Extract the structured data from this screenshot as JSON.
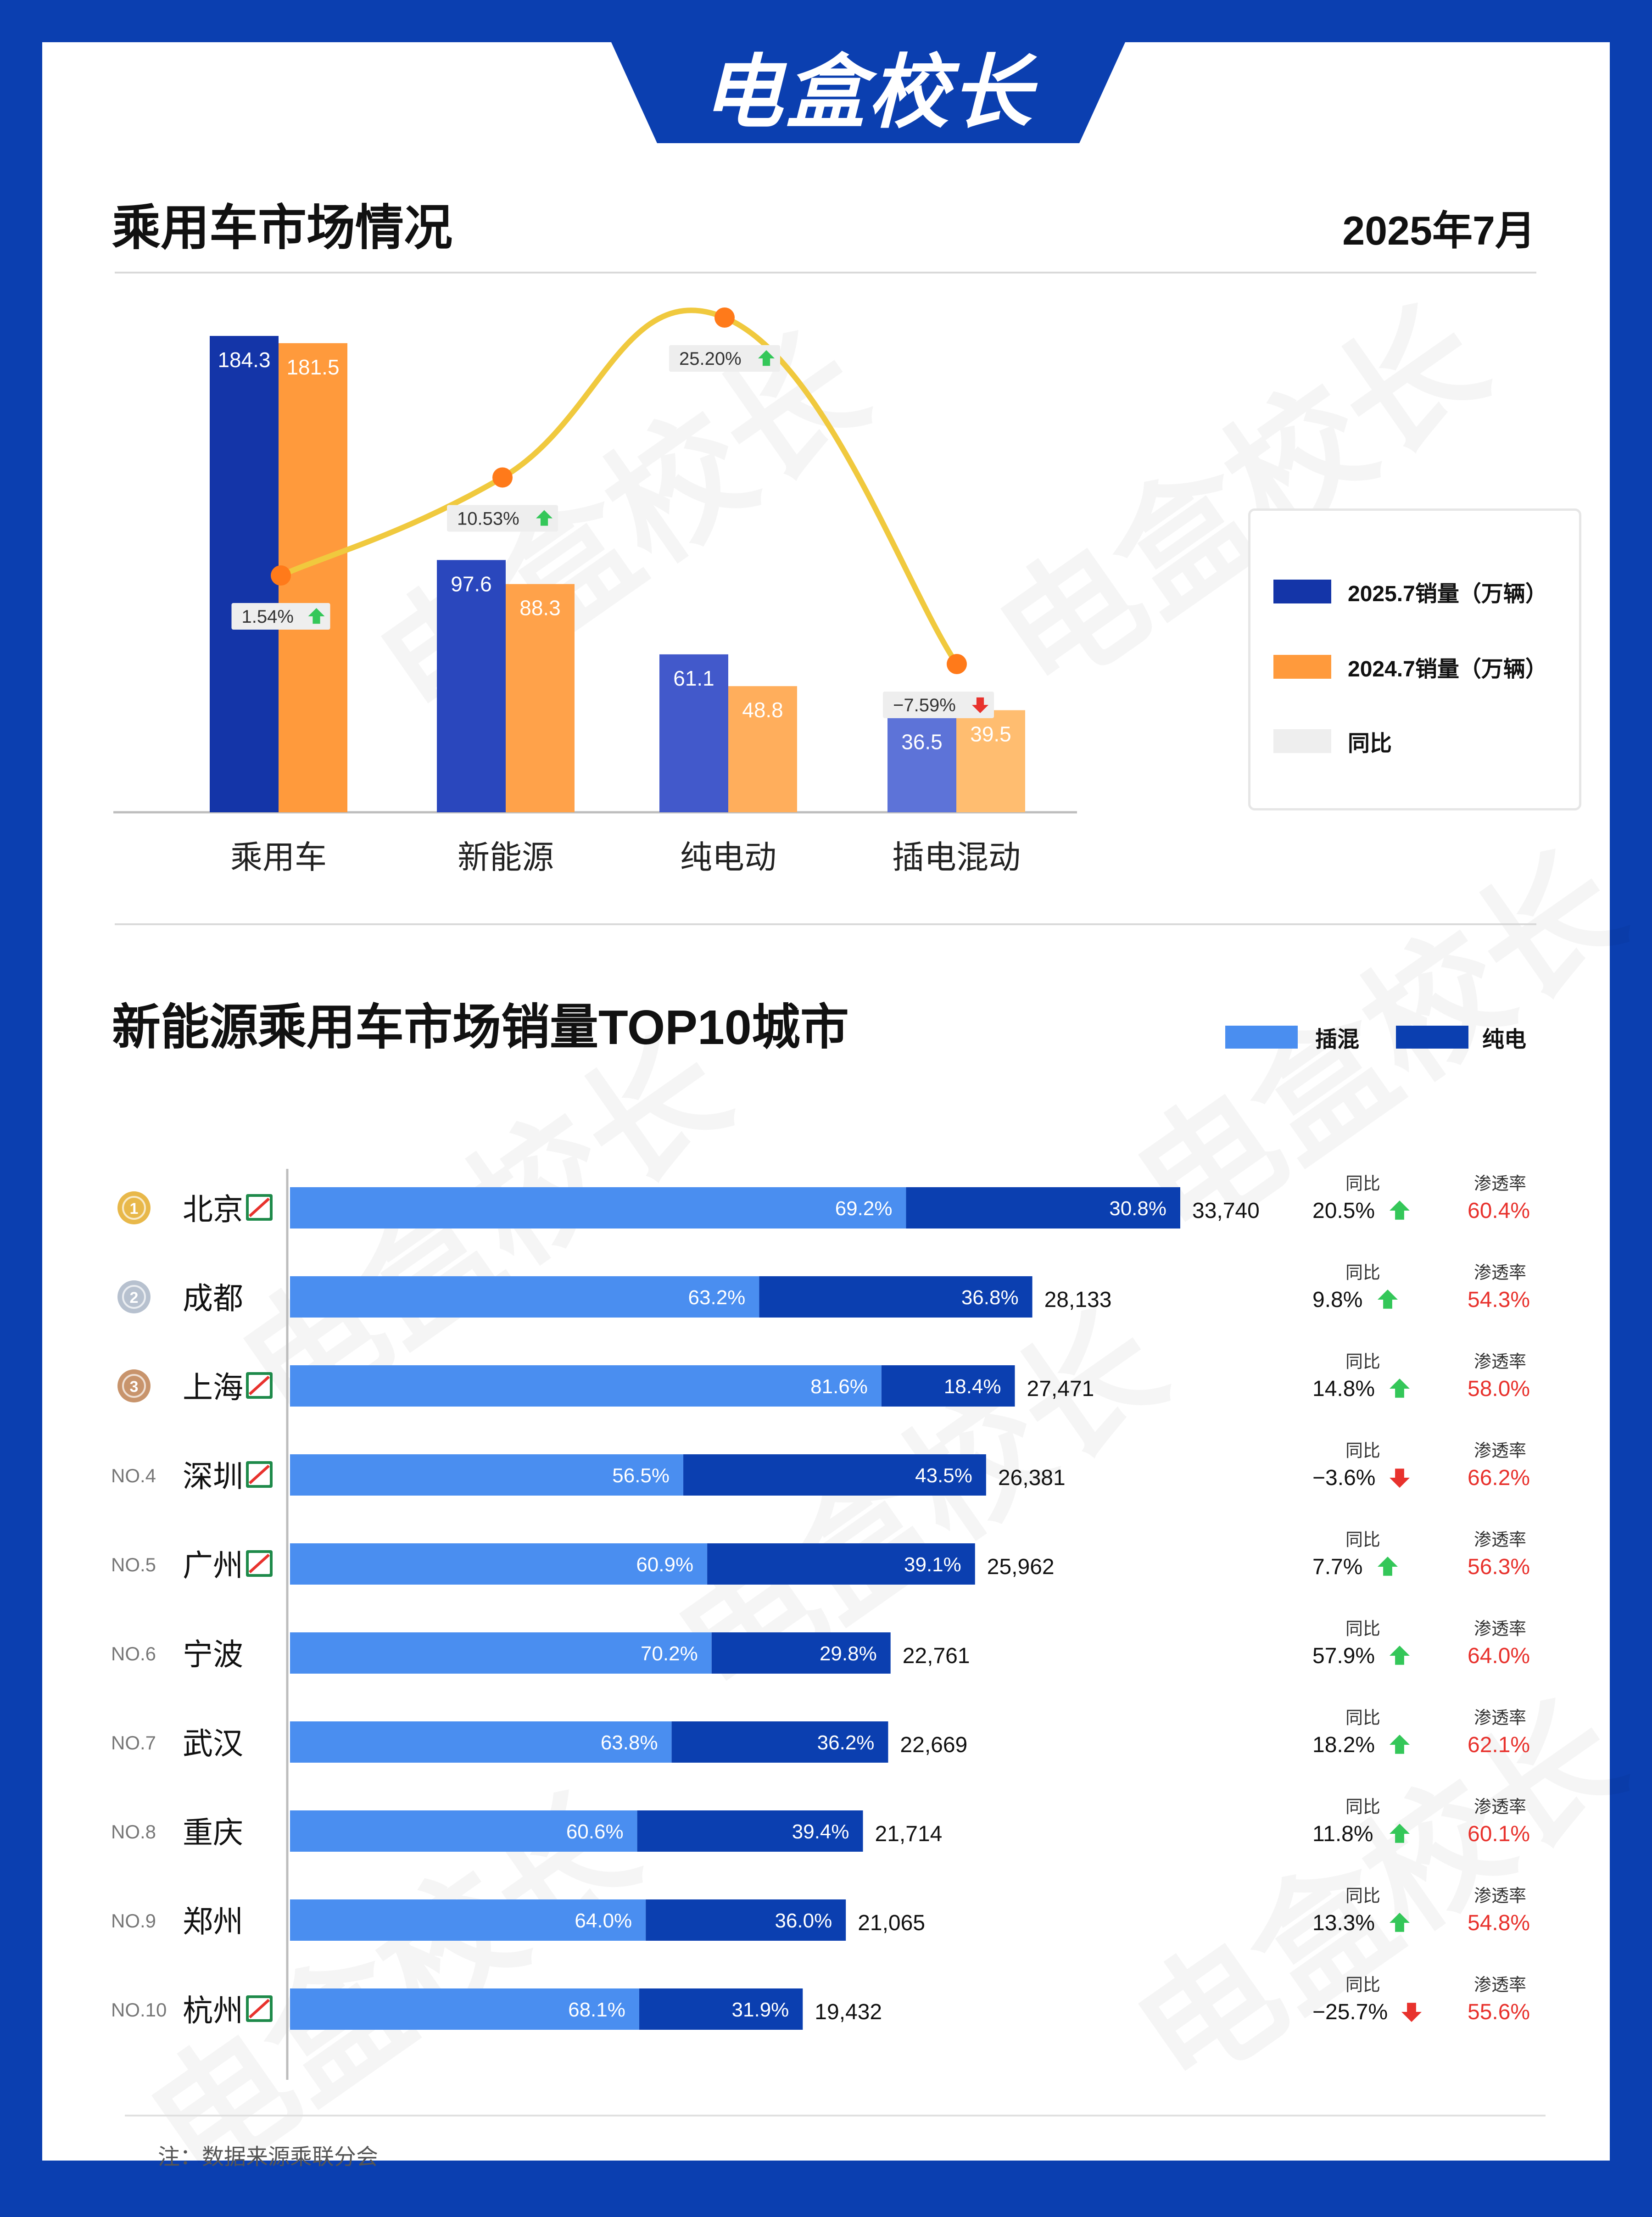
{
  "brand": {
    "name": "电盒校长"
  },
  "section1": {
    "title": "乘用车市场情况",
    "date": "2025年7月"
  },
  "colors": {
    "background": "#0b3fb0",
    "bar2025": [
      "#1435a8",
      "#2a47bd",
      "#4259cb",
      "#5d73d8"
    ],
    "bar2024": [
      "#ff9a3c",
      "#ffa24a",
      "#ffae5c",
      "#ffbd70"
    ],
    "line": "#f0c93e",
    "point": "#ff7a1a",
    "plug": "#4a8ef0",
    "pure": "#0b3fb0",
    "up": "#34c759",
    "down": "#e8322d",
    "rate": "#e8322d"
  },
  "legend1": {
    "items": [
      {
        "label": "2025.7销量（万辆）",
        "color": "#1435a8"
      },
      {
        "label": "2024.7销量（万辆）",
        "color": "#ff9a3c"
      },
      {
        "label": "同比",
        "color": "#eeeeee"
      }
    ]
  },
  "section2": {
    "title": "新能源乘用车市场销量TOP10城市",
    "legend": [
      {
        "label": "插混",
        "color": "#4a8ef0"
      },
      {
        "label": "纯电",
        "color": "#0b3fb0"
      }
    ],
    "yoy_label": "同比",
    "rate_label": "渗透率"
  },
  "footer": {
    "note": "注：数据来源乘联分会"
  },
  "chart_data": [
    {
      "type": "bar",
      "title": "乘用车市场情况",
      "categories": [
        "乘用车",
        "新能源",
        "纯电动",
        "插电混动"
      ],
      "series": [
        {
          "name": "2025.7销量（万辆）",
          "values": [
            184.3,
            97.6,
            61.1,
            36.5
          ]
        },
        {
          "name": "2024.7销量（万辆）",
          "values": [
            181.5,
            88.3,
            48.8,
            39.5
          ]
        }
      ],
      "yoy": {
        "name": "同比",
        "values": [
          1.54,
          10.53,
          25.2,
          -7.59
        ],
        "labels": [
          "1.54%",
          "10.53%",
          "25.20%",
          "−7.59%"
        ],
        "direction": [
          "up",
          "up",
          "up",
          "down"
        ]
      },
      "ylim": [
        0,
        190
      ]
    },
    {
      "type": "bar",
      "title": "新能源乘用车市场销量TOP10城市",
      "orientation": "horizontal",
      "stacked": true,
      "series_names": [
        "插混",
        "纯电"
      ],
      "rows": [
        {
          "rank": "1",
          "medal": "gold",
          "city": "北京",
          "plate": true,
          "plug": "69.2%",
          "pure": "30.8%",
          "plug_pct": 69.2,
          "total": 33740,
          "total_label": "33,740",
          "yoy": "20.5%",
          "dir": "up",
          "rate": "60.4%"
        },
        {
          "rank": "2",
          "medal": "silver",
          "city": "成都",
          "plate": false,
          "plug": "63.2%",
          "pure": "36.8%",
          "plug_pct": 63.2,
          "total": 28133,
          "total_label": "28,133",
          "yoy": "9.8%",
          "dir": "up",
          "rate": "54.3%"
        },
        {
          "rank": "3",
          "medal": "bronze",
          "city": "上海",
          "plate": true,
          "plug": "81.6%",
          "pure": "18.4%",
          "plug_pct": 81.6,
          "total": 27471,
          "total_label": "27,471",
          "yoy": "14.8%",
          "dir": "up",
          "rate": "58.0%"
        },
        {
          "rank": "NO.4",
          "medal": "",
          "city": "深圳",
          "plate": true,
          "plug": "56.5%",
          "pure": "43.5%",
          "plug_pct": 56.5,
          "total": 26381,
          "total_label": "26,381",
          "yoy": "−3.6%",
          "dir": "down",
          "rate": "66.2%"
        },
        {
          "rank": "NO.5",
          "medal": "",
          "city": "广州",
          "plate": true,
          "plug": "60.9%",
          "pure": "39.1%",
          "plug_pct": 60.9,
          "total": 25962,
          "total_label": "25,962",
          "yoy": "7.7%",
          "dir": "up",
          "rate": "56.3%"
        },
        {
          "rank": "NO.6",
          "medal": "",
          "city": "宁波",
          "plate": false,
          "plug": "70.2%",
          "pure": "29.8%",
          "plug_pct": 70.2,
          "total": 22761,
          "total_label": "22,761",
          "yoy": "57.9%",
          "dir": "up",
          "rate": "64.0%"
        },
        {
          "rank": "NO.7",
          "medal": "",
          "city": "武汉",
          "plate": false,
          "plug": "63.8%",
          "pure": "36.2%",
          "plug_pct": 63.8,
          "total": 22669,
          "total_label": "22,669",
          "yoy": "18.2%",
          "dir": "up",
          "rate": "62.1%"
        },
        {
          "rank": "NO.8",
          "medal": "",
          "city": "重庆",
          "plate": false,
          "plug": "60.6%",
          "pure": "39.4%",
          "plug_pct": 60.6,
          "total": 21714,
          "total_label": "21,714",
          "yoy": "11.8%",
          "dir": "up",
          "rate": "60.1%"
        },
        {
          "rank": "NO.9",
          "medal": "",
          "city": "郑州",
          "plate": false,
          "plug": "64.0%",
          "pure": "36.0%",
          "plug_pct": 64.0,
          "total": 21065,
          "total_label": "21,065",
          "yoy": "13.3%",
          "dir": "up",
          "rate": "54.8%"
        },
        {
          "rank": "NO.10",
          "medal": "",
          "city": "杭州",
          "plate": true,
          "plug": "68.1%",
          "pure": "31.9%",
          "plug_pct": 68.1,
          "total": 19432,
          "total_label": "19,432",
          "yoy": "−25.7%",
          "dir": "down",
          "rate": "55.6%"
        }
      ]
    }
  ]
}
